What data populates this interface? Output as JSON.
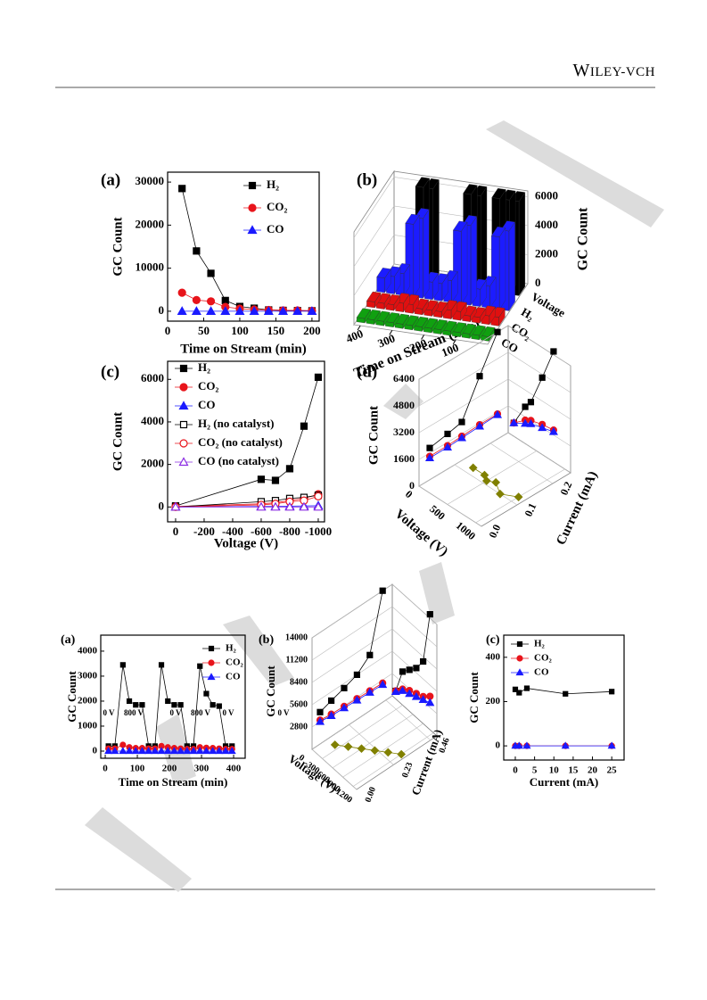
{
  "header": {
    "publisher": "WILEY-VCH"
  },
  "chart_data": [
    {
      "type": "line",
      "panel": "(a)",
      "x_label": "Time on Stream (min)",
      "y_label": "GC Count",
      "x": [
        20,
        40,
        60,
        80,
        100,
        120,
        140,
        160,
        180,
        200
      ],
      "series": [
        {
          "name": "H₂",
          "color": "#000000",
          "marker": "square",
          "filled": true,
          "values": [
            28500,
            14000,
            8800,
            2500,
            1100,
            700,
            300,
            200,
            150,
            100
          ]
        },
        {
          "name": "CO₂",
          "color": "#e8141b",
          "marker": "circle",
          "filled": true,
          "values": [
            4300,
            2600,
            2300,
            1000,
            600,
            400,
            300,
            200,
            200,
            100
          ]
        },
        {
          "name": "CO",
          "color": "#1a1aff",
          "marker": "triangle",
          "filled": true,
          "values": [
            0,
            0,
            0,
            0,
            0,
            0,
            0,
            0,
            0,
            0
          ]
        }
      ],
      "xlim": [
        0,
        210
      ],
      "ylim": [
        -2300,
        32300
      ],
      "xticks": [
        0,
        50,
        100,
        150,
        200
      ],
      "yticks": [
        0,
        10000,
        20000,
        30000
      ],
      "legend": "upper right"
    },
    {
      "type": "bar3d",
      "panel": "(b)",
      "x_label": "Time on Stream (min)",
      "z_label": "GC Count",
      "x": [
        15,
        45,
        75,
        105,
        135,
        165,
        195,
        225,
        255,
        285,
        315,
        345,
        375,
        405
      ],
      "series": [
        {
          "name": "Voltage",
          "color": "#000000",
          "values": [
            6500,
            6500,
            6500,
            0,
            6500,
            6500,
            0,
            0,
            0,
            6500,
            6500,
            0,
            0,
            0
          ]
        },
        {
          "name": "H₂",
          "color": "#1c1cff",
          "values": [
            5500,
            5000,
            1500,
            1200,
            5500,
            5000,
            1500,
            1200,
            1200,
            5500,
            5000,
            1500,
            1200,
            1000
          ]
        },
        {
          "name": "CO₂",
          "color": "#e01010",
          "values": [
            600,
            600,
            400,
            400,
            600,
            600,
            400,
            400,
            400,
            600,
            600,
            400,
            400,
            400
          ]
        },
        {
          "name": "CO",
          "color": "#10a010",
          "values": [
            300,
            300,
            300,
            300,
            300,
            300,
            300,
            300,
            300,
            300,
            300,
            300,
            300,
            300
          ]
        }
      ],
      "xlim": [
        0,
        420
      ],
      "xticks": [
        100,
        200,
        300,
        400
      ],
      "zlim": [
        0,
        6400
      ],
      "zticks": [
        0,
        2000,
        4000,
        6000
      ]
    },
    {
      "type": "line",
      "panel": "(c)",
      "x_label": "Voltage (V)",
      "y_label": "GC Count",
      "x": [
        0,
        -600,
        -700,
        -800,
        -900,
        -1000
      ],
      "series": [
        {
          "name": "H₂",
          "color": "#000000",
          "marker": "square",
          "filled": true,
          "values": [
            50,
            1300,
            1250,
            1800,
            3800,
            6100
          ]
        },
        {
          "name": "CO₂",
          "color": "#e8141b",
          "marker": "circle",
          "filled": true,
          "values": [
            20,
            150,
            200,
            300,
            400,
            600
          ]
        },
        {
          "name": "CO",
          "color": "#1a1aff",
          "marker": "triangle",
          "filled": true,
          "values": [
            0,
            20,
            30,
            40,
            50,
            60
          ]
        },
        {
          "name": "H₂ (no catalyst)",
          "color": "#000000",
          "marker": "square",
          "filled": false,
          "values": [
            0,
            250,
            300,
            400,
            450,
            550
          ]
        },
        {
          "name": "CO₂ (no catalyst)",
          "color": "#e8141b",
          "marker": "circle",
          "filled": false,
          "values": [
            0,
            100,
            150,
            250,
            300,
            500
          ]
        },
        {
          "name": "CO (no catalyst)",
          "color": "#8a2be2",
          "marker": "triangle",
          "filled": false,
          "values": [
            0,
            0,
            0,
            0,
            0,
            0
          ]
        }
      ],
      "xlim": [
        56,
        -1044
      ],
      "ylim": [
        -700,
        6850
      ],
      "xticks": [
        0,
        -200,
        -400,
        -600,
        -800,
        -1000
      ],
      "yticks": [
        0,
        2000,
        4000,
        6000
      ],
      "legend": "upper left"
    },
    {
      "type": "line3d",
      "panel": "(d)",
      "x_label": "Voltage (V)",
      "y_label": "Current (mA)",
      "z_label": "GC Count",
      "series": [
        {
          "color": "#000000",
          "marker": "square",
          "plane": "voltage",
          "x": [
            100,
            300,
            400,
            600,
            800
          ],
          "values": [
            800,
            2200,
            2700,
            4600,
            6600
          ]
        },
        {
          "color": "#e8141b",
          "marker": "circle",
          "plane": "voltage",
          "x": [
            100,
            300,
            400,
            600,
            800
          ],
          "values": [
            800,
            1400,
            1600,
            1800,
            1900
          ]
        },
        {
          "color": "#1a1aff",
          "marker": "triangle",
          "plane": "voltage",
          "x": [
            100,
            300,
            400,
            600,
            800
          ],
          "values": [
            800,
            1200,
            1400,
            1600,
            1800
          ]
        },
        {
          "color": "#000000",
          "marker": "square",
          "plane": "current",
          "x": [
            0.03,
            0.08,
            0.12,
            0.17,
            0.22
          ],
          "values": [
            1900,
            2100,
            2300,
            4400,
            6400
          ]
        },
        {
          "color": "#e8141b",
          "marker": "circle",
          "plane": "current",
          "x": [
            0.03,
            0.08,
            0.12,
            0.17,
            0.22
          ],
          "values": [
            1400,
            1400,
            1450,
            1500,
            1500
          ]
        },
        {
          "color": "#1a1aff",
          "marker": "triangle",
          "plane": "current",
          "x": [
            0.03,
            0.08,
            0.12,
            0.17,
            0.22
          ],
          "values": [
            1300,
            1300,
            1350,
            1400,
            1450
          ]
        },
        {
          "color": "#808000",
          "marker": "diamond",
          "plane": "floor",
          "x": [
            200,
            400,
            500,
            600,
            800,
            1000
          ],
          "values": [
            0.12,
            0.12,
            0.11,
            0.12,
            0.1,
            0.12
          ]
        }
      ],
      "xlim": [
        0,
        1100
      ],
      "ylim": [
        0,
        0.25
      ],
      "zlim": [
        0,
        6400
      ],
      "xticks": [
        0,
        500,
        1000
      ],
      "yticks": [
        {
          "value": 0,
          "label": "0.0"
        },
        {
          "value": 0.1,
          "label": "0.1"
        },
        {
          "value": 0.2,
          "label": "0.2"
        }
      ],
      "zticks": [
        0,
        1600,
        3200,
        4800,
        6400
      ]
    },
    {
      "type": "line",
      "panel": "(a)",
      "x_label": "Time on Stream (min)",
      "y_label": "GC Count",
      "x": [
        10,
        30,
        55,
        75,
        95,
        115,
        135,
        155,
        175,
        195,
        215,
        235,
        255,
        275,
        295,
        315,
        335,
        355,
        375,
        395
      ],
      "series": [
        {
          "name": "H₂",
          "color": "#000000",
          "marker": "square",
          "filled": true,
          "values": [
            200,
            200,
            3450,
            2000,
            1850,
            1850,
            200,
            200,
            3450,
            2000,
            1850,
            1850,
            200,
            200,
            3400,
            2300,
            1850,
            1800,
            200,
            200
          ]
        },
        {
          "name": "CO₂",
          "color": "#e8141b",
          "marker": "circle",
          "filled": true,
          "values": [
            100,
            100,
            250,
            150,
            120,
            120,
            100,
            100,
            200,
            150,
            120,
            100,
            80,
            80,
            150,
            130,
            120,
            100,
            80,
            80
          ]
        },
        {
          "name": "CO",
          "color": "#1a1aff",
          "marker": "triangle",
          "filled": true,
          "values": [
            0,
            0,
            0,
            0,
            0,
            0,
            0,
            0,
            0,
            0,
            0,
            0,
            0,
            0,
            0,
            0,
            0,
            0,
            0,
            0
          ]
        }
      ],
      "annotations": [
        "0 V",
        "800 V",
        "0 V",
        "800 V",
        "0 V",
        "0 V"
      ],
      "xlim": [
        -14,
        436
      ],
      "ylim": [
        -286,
        4640
      ],
      "xticks": [
        0,
        100,
        200,
        300,
        400
      ],
      "yticks": [
        0,
        1000,
        2000,
        3000,
        4000
      ],
      "legend": "upper right"
    },
    {
      "type": "line3d",
      "panel": "(b)",
      "x_label": "Voltage (V)",
      "y_label": "Current (mA)",
      "z_label": "GC Count",
      "series": [
        {
          "color": "#000000",
          "marker": "square",
          "plane": "voltage",
          "x": [
            -100,
            -300,
            -500,
            -700,
            -900,
            -1100
          ],
          "values": [
            1000,
            4200,
            5200,
            6200,
            7800,
            14500
          ]
        },
        {
          "color": "#e8141b",
          "marker": "circle",
          "plane": "voltage",
          "x": [
            -100,
            -300,
            -500,
            -700,
            -900,
            -1100
          ],
          "values": [
            1000,
            2000,
            2600,
            3000,
            3400,
            4200
          ]
        },
        {
          "color": "#1a1aff",
          "marker": "triangle",
          "plane": "voltage",
          "x": [
            -100,
            -300,
            -500,
            -700,
            -900,
            -1100
          ],
          "values": [
            900,
            1800,
            2200,
            2600,
            3000,
            3400
          ]
        },
        {
          "color": "#000000",
          "marker": "square",
          "plane": "current",
          "x": [
            0.05,
            0.12,
            0.2,
            0.28,
            0.36,
            0.44
          ],
          "values": [
            4000,
            4500,
            5000,
            5600,
            7000,
            14000
          ]
        },
        {
          "color": "#e8141b",
          "marker": "circle",
          "plane": "current",
          "x": [
            0.05,
            0.12,
            0.2,
            0.28,
            0.36,
            0.44
          ],
          "values": [
            3000,
            2800,
            2700,
            2600,
            2500,
            2400
          ]
        },
        {
          "color": "#1a1aff",
          "marker": "triangle",
          "plane": "current",
          "x": [
            0.05,
            0.12,
            0.2,
            0.28,
            0.36,
            0.44
          ],
          "values": [
            2800,
            2600,
            2500,
            2400,
            2300,
            2200
          ]
        },
        {
          "color": "#808000",
          "marker": "diamond",
          "plane": "floor",
          "x": [
            -200,
            -400,
            -600,
            -800,
            -1000,
            -1200
          ],
          "values": [
            0.1,
            0.14,
            0.18,
            0.22,
            0.26,
            0.3
          ]
        }
      ],
      "xlim": [
        0,
        -1300
      ],
      "ylim": [
        0,
        0.5
      ],
      "zlim": [
        0,
        14000
      ],
      "xticks": [
        0,
        -300,
        -600,
        -900,
        -1200
      ],
      "yticks": [
        {
          "value": 0,
          "label": "0.00"
        },
        {
          "value": 0.23,
          "label": "0.23"
        },
        {
          "value": 0.46,
          "label": "0.46"
        }
      ],
      "zticks": [
        2800,
        5600,
        8400,
        11200,
        14000
      ]
    },
    {
      "type": "line",
      "panel": "(c)",
      "x_label": "Current (mA)",
      "y_label": "GC Count",
      "x": [
        0,
        1,
        3,
        13,
        25
      ],
      "series": [
        {
          "name": "H₂",
          "color": "#000000",
          "marker": "square",
          "filled": true,
          "values": [
            255,
            240,
            260,
            235,
            245
          ]
        },
        {
          "name": "CO₂",
          "color": "#e8141b",
          "marker": "circle",
          "filled": true,
          "values": [
            0,
            0,
            0,
            0,
            0
          ]
        },
        {
          "name": "CO",
          "color": "#1a1aff",
          "marker": "triangle",
          "filled": true,
          "values": [
            0,
            0,
            0,
            0,
            0
          ]
        }
      ],
      "xlim": [
        -3,
        28.2
      ],
      "ylim": [
        -64,
        500
      ],
      "xticks": [
        0,
        5,
        10,
        15,
        20,
        25
      ],
      "yticks": [
        0,
        200,
        400
      ],
      "legend": "upper left"
    }
  ]
}
